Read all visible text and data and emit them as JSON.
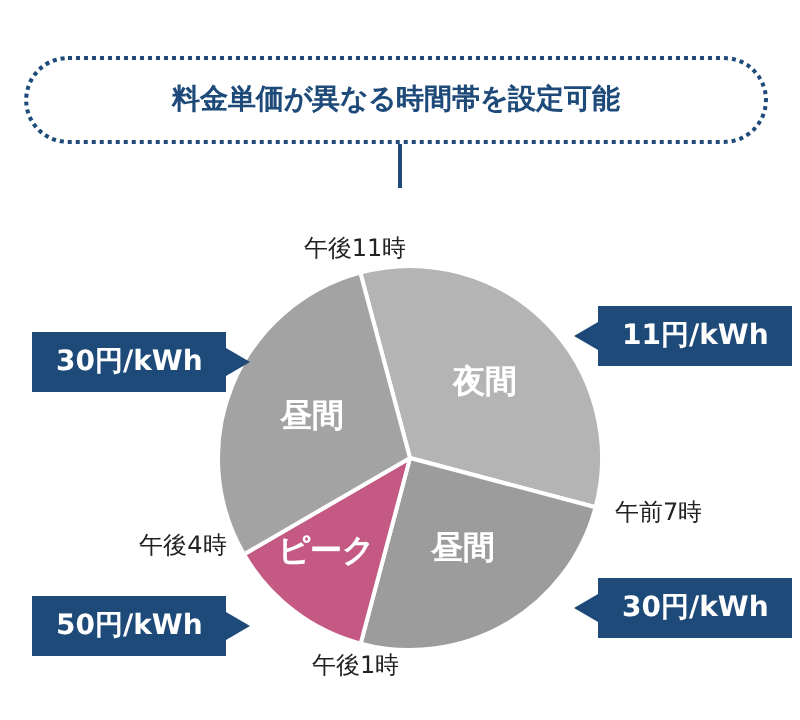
{
  "chart_data": {
    "type": "pie",
    "title": "料金単価が異なる時間帯を設定可能",
    "categories": [
      "夜間",
      "昼間",
      "ピーク",
      "昼間"
    ],
    "values": [
      33.3,
      25,
      12.5,
      29.2
    ],
    "colors": [
      "#b4b4b4",
      "#9c9c9c",
      "#c45a84",
      "#a3a3a3"
    ],
    "annotations": [
      "午後11時",
      "午前7時",
      "午後1時",
      "午後4時",
      "11円/kWh",
      "30円/kWh",
      "50円/kWh",
      "30円/kWh"
    ],
    "legend": false
  }
}
